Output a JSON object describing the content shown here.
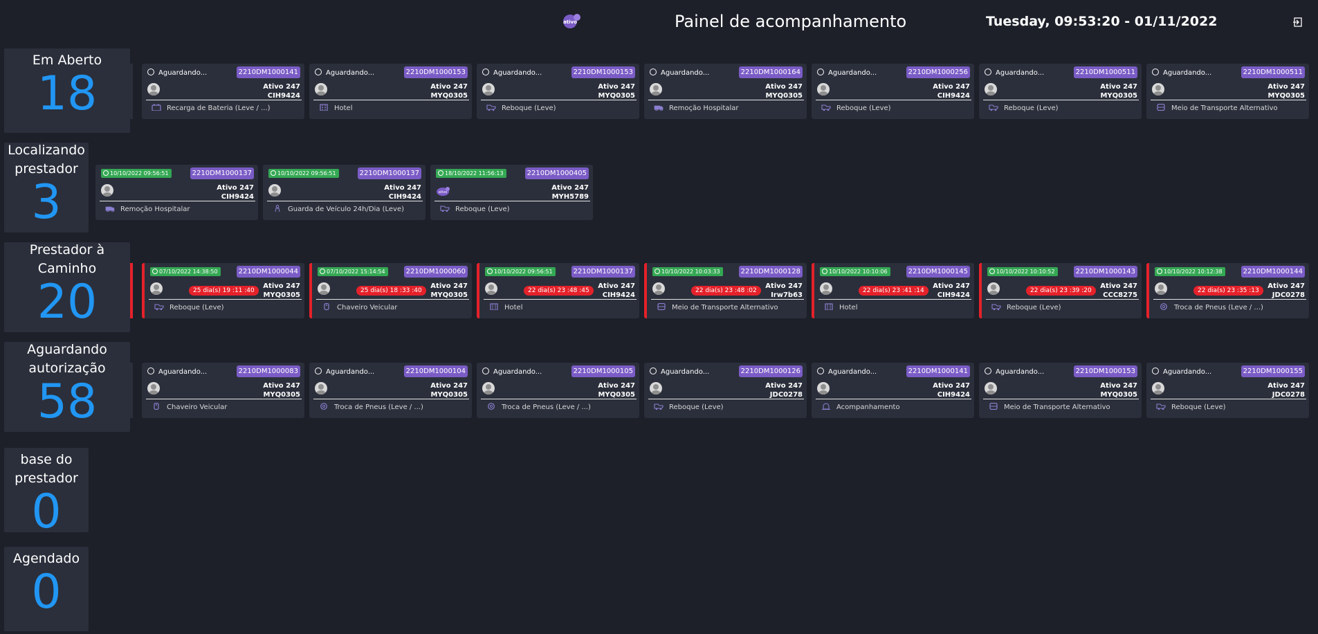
{
  "header": {
    "title": "Painel de acompanhamento",
    "datetime": "Tuesday, 09:53:20 - 01/11/2022",
    "logo_text": "ativo",
    "logout_icon": "logout-icon"
  },
  "colors": {
    "background": "#1d2029",
    "panel": "#2b2f3b",
    "count": "#2196f3",
    "protocol_badge": "#7b5cc6",
    "date_badge": "#34a853",
    "alert": "#e5212a"
  },
  "sections": [
    {
      "label": "Em Aberto",
      "count": "18",
      "cards": [
        {
          "status": "Aguardando...",
          "protocol": "2210DM1000141",
          "line1": "Ativo 247",
          "line2": "CIH9424",
          "service": "Recarga de Bateria (Leve / ...)",
          "icon": "battery-icon"
        },
        {
          "status": "Aguardando...",
          "protocol": "2210DM1000153",
          "line1": "Ativo 247",
          "line2": "MYQ0305",
          "service": "Hotel",
          "icon": "hotel-icon"
        },
        {
          "status": "Aguardando...",
          "protocol": "2210DM1000153",
          "line1": "Ativo 247",
          "line2": "MYQ0305",
          "service": "Reboque (Leve)",
          "icon": "tow-truck-icon"
        },
        {
          "status": "Aguardando...",
          "protocol": "2210DM1000164",
          "line1": "Ativo 247",
          "line2": "MYQ0305",
          "service": "Remoção Hospitalar",
          "icon": "ambulance-icon"
        },
        {
          "status": "Aguardando...",
          "protocol": "2210DM1000256",
          "line1": "Ativo 247",
          "line2": "CIH9424",
          "service": "Reboque (Leve)",
          "icon": "tow-truck-icon"
        },
        {
          "status": "Aguardando...",
          "protocol": "2210DM1000511",
          "line1": "Ativo 247",
          "line2": "MYQ0305",
          "service": "Reboque (Leve)",
          "icon": "tow-truck-icon"
        },
        {
          "status": "Aguardando...",
          "protocol": "2210DM1000511",
          "line1": "Ativo 247",
          "line2": "MYQ0305",
          "service": "Meio de Transporte Alternativo",
          "icon": "bus-icon"
        }
      ]
    },
    {
      "label": "Localizando prestador",
      "count": "3",
      "cards": [
        {
          "date": "10/10/2022 09:56:51",
          "protocol": "2210DM1000137",
          "line1": "Ativo 247",
          "line2": "CIH9424",
          "service": "Remoção Hospitalar",
          "icon": "ambulance-icon"
        },
        {
          "date": "10/10/2022 09:56:51",
          "protocol": "2210DM1000137",
          "line1": "Ativo 247",
          "line2": "CIH9424",
          "service": "Guarda de Veículo 24h/Dia (Leve)",
          "icon": "guard-icon"
        },
        {
          "date": "18/10/2022 11:56:13",
          "protocol": "2210DM1000405",
          "line1": "Ativo 247",
          "line2": "MYH5789",
          "service": "Reboque (Leve)",
          "icon": "tow-truck-icon",
          "logo_avatar": "ativo"
        }
      ]
    },
    {
      "label": "Prestador à Caminho",
      "count": "20",
      "cards": [
        {
          "date": "07/10/2022 14:38:50",
          "protocol": "2210DM1000044",
          "sla": "25 dia(s) 19 :11 :40",
          "line1": "Ativo 247",
          "line2": "MYQ0305",
          "service": "Reboque (Leve)",
          "icon": "tow-truck-icon"
        },
        {
          "date": "07/10/2022 15:14:54",
          "protocol": "2210DM1000060",
          "sla": "25 dia(s) 18 :33 :40",
          "line1": "Ativo 247",
          "line2": "MYQ0305",
          "service": "Chaveiro Veicular",
          "icon": "key-icon"
        },
        {
          "date": "10/10/2022 09:56:51",
          "protocol": "2210DM1000137",
          "sla": "22 dia(s) 23 :48 :45",
          "line1": "Ativo 247",
          "line2": "CIH9424",
          "service": "Hotel",
          "icon": "hotel-icon"
        },
        {
          "date": "10/10/2022 10:03:33",
          "protocol": "2210DM1000128",
          "sla": "22 dia(s) 23 :48 :02",
          "line1": "Ativo 247",
          "line2": "Irw7b63",
          "service": "Meio de Transporte Alternativo",
          "icon": "bus-icon"
        },
        {
          "date": "10/10/2022 10:10:06",
          "protocol": "2210DM1000145",
          "sla": "22 dia(s) 23 :41 :14",
          "line1": "Ativo 247",
          "line2": "CIH9424",
          "service": "Hotel",
          "icon": "hotel-icon"
        },
        {
          "date": "10/10/2022 10:10:52",
          "protocol": "2210DM1000143",
          "sla": "22 dia(s) 23 :39 :20",
          "line1": "Ativo 247",
          "line2": "CCC8275",
          "service": "Reboque (Leve)",
          "icon": "tow-truck-icon"
        },
        {
          "date": "10/10/2022 10:12:38",
          "protocol": "2210DM1000144",
          "sla": "22 dia(s) 23 :35 :13",
          "line1": "Ativo 247",
          "line2": "JDC0278",
          "service": "Troca de Pneus (Leve / ...)",
          "icon": "tire-icon"
        }
      ]
    },
    {
      "label": "Aguardando autorização",
      "count": "58",
      "cards": [
        {
          "status": "Aguardando...",
          "protocol": "2210DM1000083",
          "line1": "Ativo 247",
          "line2": "MYQ0305",
          "service": "Chaveiro Veicular",
          "icon": "key-icon"
        },
        {
          "status": "Aguardando...",
          "protocol": "2210DM1000104",
          "line1": "Ativo 247",
          "line2": "MYQ0305",
          "service": "Troca de Pneus (Leve / ...)",
          "icon": "tire-icon"
        },
        {
          "status": "Aguardando...",
          "protocol": "2210DM1000105",
          "line1": "Ativo 247",
          "line2": "MYQ0305",
          "service": "Troca de Pneus (Leve / ...)",
          "icon": "tire-icon"
        },
        {
          "status": "Aguardando...",
          "protocol": "2210DM1000126",
          "line1": "Ativo 247",
          "line2": "JDC0278",
          "service": "Reboque (Leve)",
          "icon": "tow-truck-icon"
        },
        {
          "status": "Aguardando...",
          "protocol": "2210DM1000141",
          "line1": "Ativo 247",
          "line2": "CIH9424",
          "service": "Acompanhamento",
          "icon": "siren-icon"
        },
        {
          "status": "Aguardando...",
          "protocol": "2210DM1000153",
          "line1": "Ativo 247",
          "line2": "MYQ0305",
          "service": "Meio de Transporte Alternativo",
          "icon": "bus-icon"
        },
        {
          "status": "Aguardando...",
          "protocol": "2210DM1000155",
          "line1": "Ativo 247",
          "line2": "JDC0278",
          "service": "Reboque (Leve)",
          "icon": "tow-truck-icon"
        }
      ]
    },
    {
      "label": "base do prestador",
      "count": "0",
      "cards": []
    },
    {
      "label": "Agendado",
      "count": "0",
      "cards": []
    }
  ]
}
